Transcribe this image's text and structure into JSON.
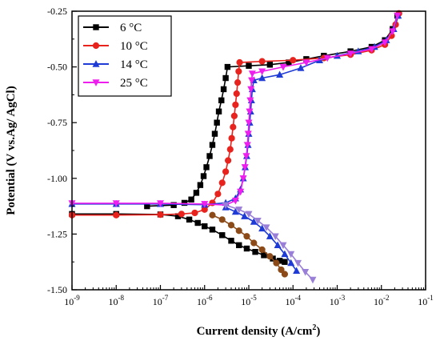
{
  "chart_data": {
    "type": "line",
    "title": "",
    "xlabel": "Current density (A/cm",
    "xlabel_sup": "2",
    "xlabel_close": ")",
    "ylabel": "Potential (V vs.Ag/ AgCl)",
    "xscale": "log",
    "xlim": [
      1e-09,
      0.1
    ],
    "ylim": [
      -1.5,
      -0.25
    ],
    "x_ticks": [
      {
        "base": "10",
        "exp": "-9"
      },
      {
        "base": "10",
        "exp": "-8"
      },
      {
        "base": "10",
        "exp": "-7"
      },
      {
        "base": "10",
        "exp": "-6"
      },
      {
        "base": "10",
        "exp": "-5"
      },
      {
        "base": "10",
        "exp": "-4"
      },
      {
        "base": "10",
        "exp": "-3"
      },
      {
        "base": "10",
        "exp": "-2"
      },
      {
        "base": "10",
        "exp": "-1"
      }
    ],
    "y_ticks": [
      "-0.25",
      "-0.50",
      "-0.75",
      "-1.00",
      "-1.25",
      "-1.50"
    ],
    "legend_position": "top-left",
    "series": [
      {
        "name": "6 °C",
        "color": "#000000",
        "marker": "square",
        "points": [
          [
            5e-08,
            -1.125
          ],
          [
            2e-07,
            -1.12
          ],
          [
            3.5e-07,
            -1.11
          ],
          [
            5e-07,
            -1.095
          ],
          [
            6.5e-07,
            -1.065
          ],
          [
            8e-07,
            -1.03
          ],
          [
            9.5e-07,
            -0.99
          ],
          [
            1.1e-06,
            -0.95
          ],
          [
            1.3e-06,
            -0.9
          ],
          [
            1.5e-06,
            -0.85
          ],
          [
            1.7e-06,
            -0.8
          ],
          [
            1.9e-06,
            -0.75
          ],
          [
            2.1e-06,
            -0.7
          ],
          [
            2.4e-06,
            -0.65
          ],
          [
            2.7e-06,
            -0.6
          ],
          [
            3e-06,
            -0.55
          ],
          [
            3.3e-06,
            -0.5
          ],
          [
            1e-05,
            -0.495
          ],
          [
            3e-05,
            -0.49
          ],
          [
            8e-05,
            -0.48
          ],
          [
            0.0002,
            -0.465
          ],
          [
            0.0005,
            -0.45
          ],
          [
            0.002,
            -0.43
          ],
          [
            0.006,
            -0.41
          ],
          [
            0.012,
            -0.38
          ],
          [
            0.018,
            -0.33
          ],
          [
            0.023,
            -0.27
          ]
        ]
      },
      {
        "name": "6 °C cathodic",
        "color": "#000000",
        "marker": "square",
        "points": [
          [
            1e-09,
            -1.16
          ],
          [
            1e-08,
            -1.16
          ],
          [
            1e-07,
            -1.162
          ],
          [
            2.5e-07,
            -1.17
          ],
          [
            4.5e-07,
            -1.185
          ],
          [
            7e-07,
            -1.2
          ],
          [
            1e-06,
            -1.215
          ],
          [
            1.5e-06,
            -1.23
          ],
          [
            2.5e-06,
            -1.255
          ],
          [
            4e-06,
            -1.28
          ],
          [
            6e-06,
            -1.3
          ],
          [
            9e-06,
            -1.315
          ],
          [
            1.4e-05,
            -1.33
          ],
          [
            2.2e-05,
            -1.345
          ],
          [
            3.5e-05,
            -1.36
          ],
          [
            5e-05,
            -1.37
          ],
          [
            6.5e-05,
            -1.375
          ]
        ]
      },
      {
        "name": "10 °C",
        "color": "#e8231d",
        "marker": "circle",
        "points": [
          [
            1e-09,
            -1.165
          ],
          [
            1e-08,
            -1.165
          ],
          [
            1e-07,
            -1.163
          ],
          [
            3e-07,
            -1.16
          ],
          [
            6e-07,
            -1.155
          ],
          [
            1e-06,
            -1.14
          ],
          [
            1.5e-06,
            -1.11
          ],
          [
            2e-06,
            -1.07
          ],
          [
            2.5e-06,
            -1.02
          ],
          [
            3e-06,
            -0.97
          ],
          [
            3.4e-06,
            -0.92
          ],
          [
            3.8e-06,
            -0.87
          ],
          [
            4.1e-06,
            -0.82
          ],
          [
            4.4e-06,
            -0.77
          ],
          [
            4.7e-06,
            -0.72
          ],
          [
            5e-06,
            -0.67
          ],
          [
            5.3e-06,
            -0.62
          ],
          [
            5.6e-06,
            -0.57
          ],
          [
            5.9e-06,
            -0.52
          ],
          [
            6.2e-06,
            -0.48
          ],
          [
            2e-05,
            -0.475
          ],
          [
            0.0001,
            -0.47
          ],
          [
            0.0005,
            -0.46
          ],
          [
            0.002,
            -0.445
          ],
          [
            0.006,
            -0.425
          ],
          [
            0.012,
            -0.4
          ],
          [
            0.017,
            -0.36
          ],
          [
            0.021,
            -0.31
          ],
          [
            0.025,
            -0.26
          ]
        ]
      },
      {
        "name": "10 °C cathodic",
        "color": "#8b4a17",
        "marker": "circle",
        "points": [
          [
            1.5e-06,
            -1.165
          ],
          [
            2.5e-06,
            -1.185
          ],
          [
            4e-06,
            -1.21
          ],
          [
            6e-06,
            -1.235
          ],
          [
            9e-06,
            -1.26
          ],
          [
            1.3e-05,
            -1.29
          ],
          [
            2e-05,
            -1.32
          ],
          [
            3e-05,
            -1.35
          ],
          [
            4.2e-05,
            -1.38
          ],
          [
            5.4e-05,
            -1.41
          ],
          [
            6.5e-05,
            -1.43
          ]
        ]
      },
      {
        "name": "14 °C",
        "color": "#1f3bd6",
        "marker": "triangle-up",
        "points": [
          [
            1e-09,
            -1.115
          ],
          [
            1e-08,
            -1.115
          ],
          [
            1e-07,
            -1.115
          ],
          [
            1e-06,
            -1.118
          ],
          [
            3e-06,
            -1.11
          ],
          [
            5e-06,
            -1.09
          ],
          [
            6.5e-06,
            -1.05
          ],
          [
            7.5e-06,
            -1.0
          ],
          [
            8.3e-06,
            -0.95
          ],
          [
            9e-06,
            -0.9
          ],
          [
            9.6e-06,
            -0.85
          ],
          [
            1e-05,
            -0.8
          ],
          [
            1.05e-05,
            -0.75
          ],
          [
            1.1e-05,
            -0.7
          ],
          [
            1.15e-05,
            -0.65
          ],
          [
            1.2e-05,
            -0.6
          ],
          [
            1.3e-05,
            -0.56
          ],
          [
            2e-05,
            -0.55
          ],
          [
            5e-05,
            -0.535
          ],
          [
            0.00015,
            -0.505
          ],
          [
            0.0004,
            -0.47
          ],
          [
            0.001,
            -0.45
          ],
          [
            0.003,
            -0.43
          ],
          [
            0.007,
            -0.41
          ],
          [
            0.013,
            -0.38
          ],
          [
            0.019,
            -0.33
          ],
          [
            0.024,
            -0.27
          ]
        ]
      },
      {
        "name": "14 °C cathodic",
        "color": "#1f3bd6",
        "marker": "triangle-up",
        "points": [
          [
            3e-06,
            -1.13
          ],
          [
            5e-06,
            -1.15
          ],
          [
            8e-06,
            -1.17
          ],
          [
            1.3e-05,
            -1.195
          ],
          [
            2e-05,
            -1.225
          ],
          [
            3e-05,
            -1.26
          ],
          [
            4.5e-05,
            -1.3
          ],
          [
            6.5e-05,
            -1.34
          ],
          [
            9e-05,
            -1.38
          ],
          [
            0.00012,
            -1.415
          ]
        ]
      },
      {
        "name": "25 °C",
        "color": "#ee1fee",
        "marker": "triangle-down",
        "points": [
          [
            1e-09,
            -1.112
          ],
          [
            1e-08,
            -1.112
          ],
          [
            1e-07,
            -1.112
          ],
          [
            1e-06,
            -1.115
          ],
          [
            3e-06,
            -1.12
          ],
          [
            5e-06,
            -1.1
          ],
          [
            6.5e-06,
            -1.06
          ],
          [
            7.5e-06,
            -1.0
          ],
          [
            8.2e-06,
            -0.95
          ],
          [
            8.8e-06,
            -0.9
          ],
          [
            9.3e-06,
            -0.85
          ],
          [
            9.7e-06,
            -0.8
          ],
          [
            1e-05,
            -0.75
          ],
          [
            1.04e-05,
            -0.7
          ],
          [
            1.08e-05,
            -0.65
          ],
          [
            1.12e-05,
            -0.6
          ],
          [
            1.16e-05,
            -0.56
          ],
          [
            1.2e-05,
            -0.53
          ],
          [
            2e-05,
            -0.52
          ],
          [
            6e-05,
            -0.5
          ],
          [
            0.0002,
            -0.48
          ],
          [
            0.0006,
            -0.46
          ],
          [
            0.002,
            -0.44
          ],
          [
            0.006,
            -0.42
          ],
          [
            0.012,
            -0.39
          ],
          [
            0.018,
            -0.34
          ],
          [
            0.023,
            -0.27
          ]
        ]
      },
      {
        "name": "25 °C cathodic",
        "color": "#9a7fd8",
        "marker": "triangle-down",
        "points": [
          [
            3e-06,
            -1.12
          ],
          [
            6e-06,
            -1.14
          ],
          [
            1e-05,
            -1.16
          ],
          [
            1.6e-05,
            -1.19
          ],
          [
            2.5e-05,
            -1.22
          ],
          [
            4e-05,
            -1.26
          ],
          [
            6e-05,
            -1.3
          ],
          [
            9e-05,
            -1.34
          ],
          [
            0.00013,
            -1.38
          ],
          [
            0.00019,
            -1.42
          ],
          [
            0.00028,
            -1.455
          ]
        ]
      }
    ],
    "legend": [
      {
        "label": "6 °C",
        "color": "#000000",
        "marker": "square"
      },
      {
        "label": "10 °C",
        "color": "#e8231d",
        "marker": "circle"
      },
      {
        "label": "14 °C",
        "color": "#1f3bd6",
        "marker": "triangle-up"
      },
      {
        "label": "25 °C",
        "color": "#ee1fee",
        "marker": "triangle-down"
      }
    ]
  }
}
